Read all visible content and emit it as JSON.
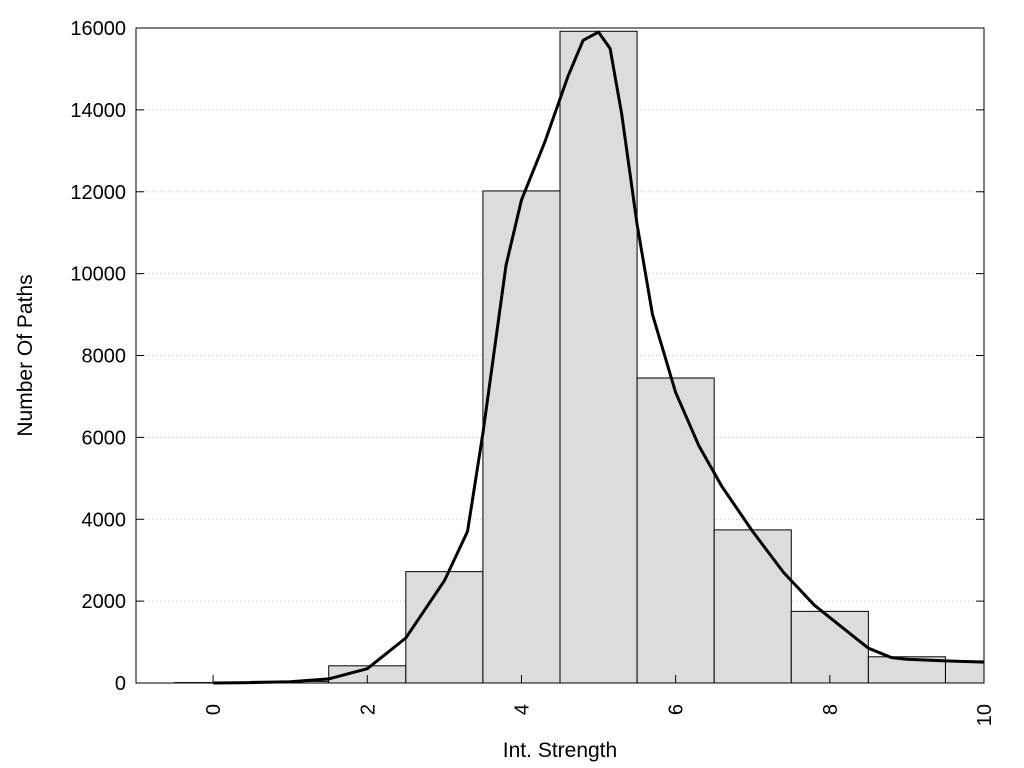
{
  "chart_data": {
    "type": "bar",
    "title": "",
    "xlabel": "Int. Strength",
    "ylabel": "Number Of Paths",
    "xlim": [
      -1,
      10
    ],
    "ylim": [
      0,
      16000
    ],
    "x_ticks": [
      0,
      2,
      4,
      6,
      8,
      10
    ],
    "y_ticks": [
      0,
      2000,
      4000,
      6000,
      8000,
      10000,
      12000,
      14000,
      16000
    ],
    "grid": "horizontal dotted",
    "bar_width": 1,
    "bars": [
      {
        "x": 0,
        "value": 10
      },
      {
        "x": 1,
        "value": 40
      },
      {
        "x": 2,
        "value": 420
      },
      {
        "x": 3,
        "value": 2720
      },
      {
        "x": 4,
        "value": 12020
      },
      {
        "x": 5,
        "value": 15920
      },
      {
        "x": 6,
        "value": 7450
      },
      {
        "x": 7,
        "value": 3740
      },
      {
        "x": 8,
        "value": 1750
      },
      {
        "x": 9,
        "value": 640
      },
      {
        "x": 10,
        "value": 540
      }
    ],
    "curve": {
      "x": [
        0,
        0.5,
        1,
        1.5,
        2,
        2.5,
        3,
        3.3,
        3.5,
        3.8,
        4,
        4.3,
        4.6,
        4.8,
        5,
        5.15,
        5.3,
        5.5,
        5.7,
        6,
        6.3,
        6.6,
        7,
        7.4,
        7.8,
        8.2,
        8.5,
        8.8,
        9,
        9.5,
        10
      ],
      "y": [
        0,
        10,
        30,
        100,
        350,
        1100,
        2500,
        3700,
        6100,
        10200,
        11800,
        13200,
        14800,
        15700,
        15900,
        15500,
        13900,
        11200,
        9000,
        7100,
        5800,
        4800,
        3700,
        2700,
        1900,
        1300,
        850,
        620,
        580,
        540,
        510
      ]
    },
    "bar_fill": "#dcdcdc",
    "bar_stroke": "#000000",
    "curve_color": "#000000"
  }
}
